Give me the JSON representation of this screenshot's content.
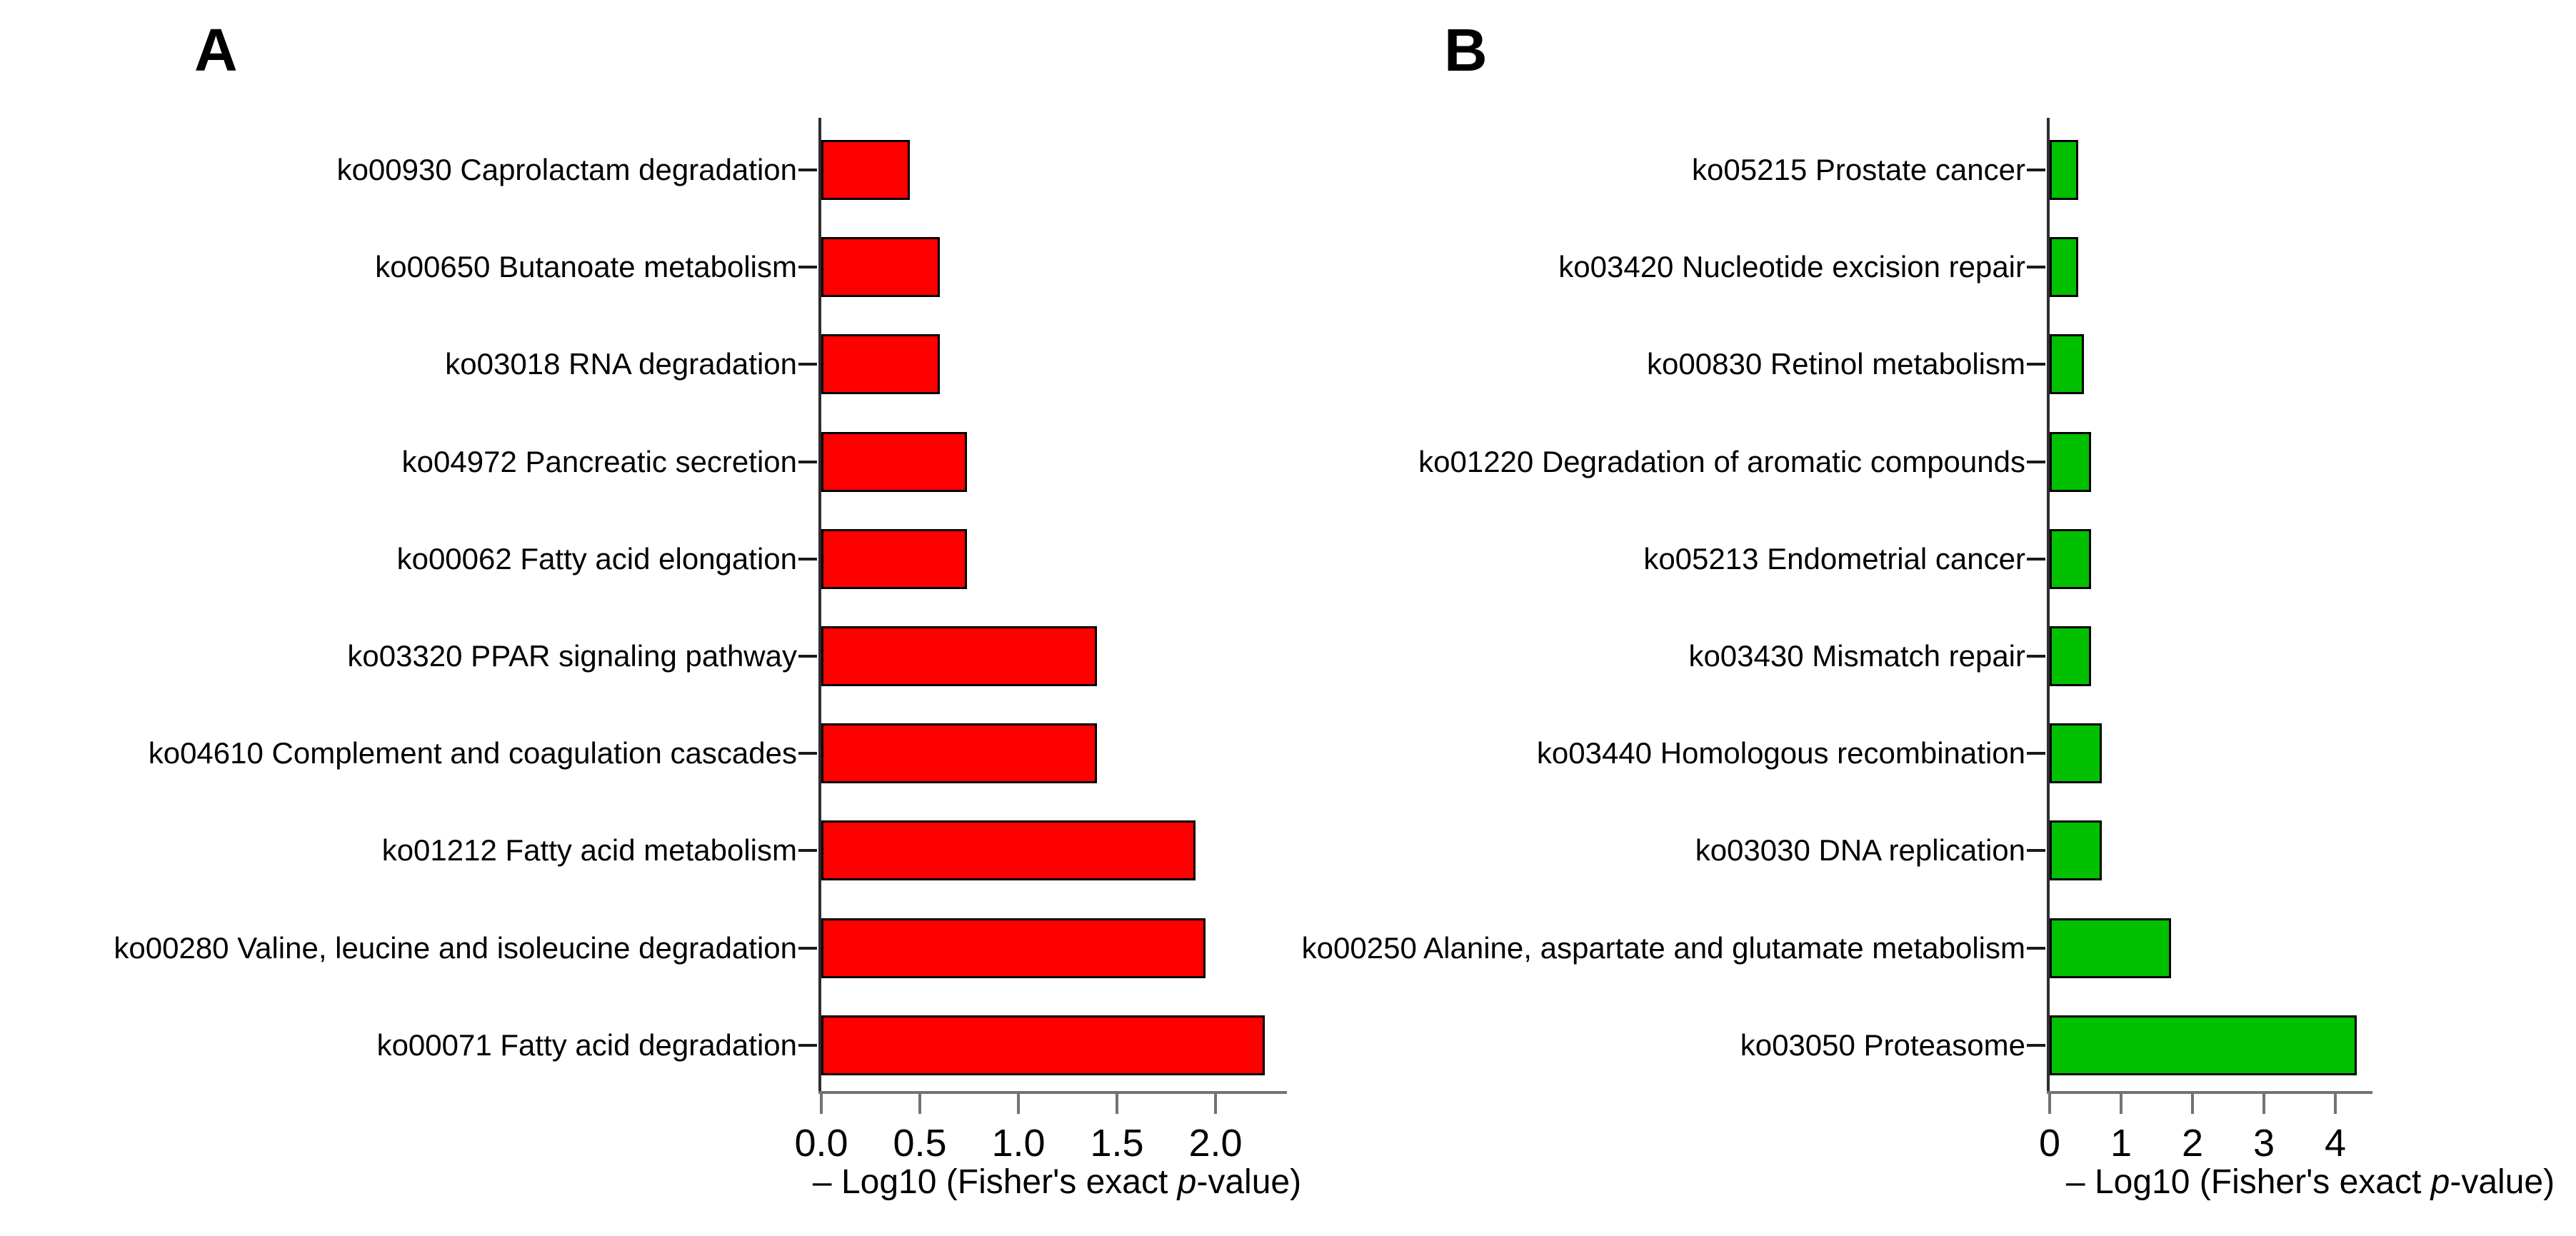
{
  "chart_data": [
    {
      "type": "bar",
      "orientation": "horizontal",
      "panel_label": "A",
      "bar_color": "#ff0000",
      "categories": [
        "ko00930 Caprolactam degradation",
        "ko00650 Butanoate metabolism",
        "ko03018 RNA degradation",
        "ko04972 Pancreatic secretion",
        "ko00062 Fatty acid elongation",
        "ko03320 PPAR signaling pathway",
        "ko04610 Complement and coagulation cascades",
        "ko01212 Fatty acid metabolism",
        "ko00280 Valine, leucine and isoleucine degradation",
        "ko00071 Fatty acid degradation"
      ],
      "values": [
        0.45,
        0.6,
        0.6,
        0.74,
        0.74,
        1.4,
        1.4,
        1.9,
        1.95,
        2.25
      ],
      "xlabel": "– Log10 (Fisher's exact p-value)",
      "xlabel_parts": {
        "prefix": "– Log10 (Fisher's exact ",
        "italic": "p",
        "suffix": "-value)"
      },
      "xtick_labels": [
        "0.0",
        "0.5",
        "1.0",
        "1.5",
        "2.0"
      ],
      "xtick_values": [
        0,
        0.5,
        1,
        1.5,
        2
      ],
      "xlim": [
        0,
        2.36
      ],
      "grid": false,
      "legend": null
    },
    {
      "type": "bar",
      "orientation": "horizontal",
      "panel_label": "B",
      "bar_color": "#00c000",
      "categories": [
        "ko05215 Prostate cancer",
        "ko03420 Nucleotide excision repair",
        "ko00830 Retinol metabolism",
        "ko01220 Degradation of aromatic compounds",
        "ko05213 Endometrial cancer",
        "ko03430 Mismatch repair",
        "ko03440 Homologous recombination",
        "ko03030 DNA replication",
        "ko00250 Alanine, aspartate and glutamate metabolism",
        "ko03050 Proteasome"
      ],
      "values": [
        0.4,
        0.4,
        0.48,
        0.58,
        0.58,
        0.58,
        0.73,
        0.73,
        1.7,
        4.3
      ],
      "xlabel": "– Log10 (Fisher's exact p-value)",
      "xlabel_parts": {
        "prefix": "– Log10 (Fisher's exact ",
        "italic": "p",
        "suffix": "-value)"
      },
      "xtick_labels": [
        "0",
        "1",
        "2",
        "3",
        "4"
      ],
      "xtick_values": [
        0,
        1,
        2,
        3,
        4
      ],
      "xlim": [
        0,
        4.52
      ],
      "grid": false,
      "legend": null
    }
  ]
}
